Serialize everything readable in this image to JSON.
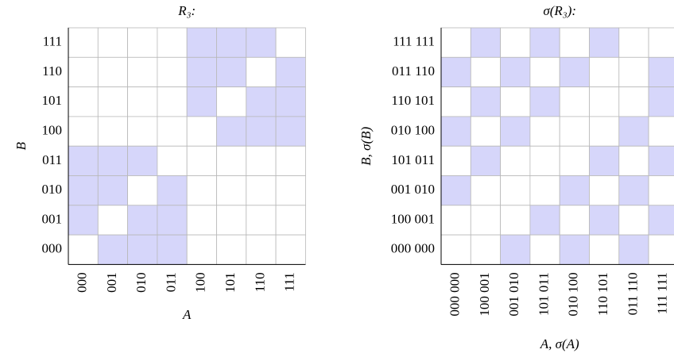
{
  "panels": [
    {
      "title": "R₃:",
      "x_label": "A",
      "y_label": "B",
      "rows": [
        "111",
        "110",
        "101",
        "100",
        "011",
        "010",
        "001",
        "000"
      ],
      "columns": [
        "000",
        "001",
        "010",
        "011",
        "100",
        "101",
        "110",
        "111"
      ],
      "cells": [
        [
          0,
          0,
          0,
          0,
          1,
          1,
          1,
          0
        ],
        [
          0,
          0,
          0,
          0,
          1,
          1,
          0,
          1
        ],
        [
          0,
          0,
          0,
          0,
          1,
          0,
          1,
          1
        ],
        [
          0,
          0,
          0,
          0,
          0,
          1,
          1,
          1
        ],
        [
          1,
          1,
          1,
          0,
          0,
          0,
          0,
          0
        ],
        [
          1,
          1,
          0,
          1,
          0,
          0,
          0,
          0
        ],
        [
          1,
          0,
          1,
          1,
          0,
          0,
          0,
          0
        ],
        [
          0,
          1,
          1,
          1,
          0,
          0,
          0,
          0
        ]
      ]
    },
    {
      "title": "σ(R₃):",
      "x_label": "A, σ(A)",
      "y_label": "B, σ(B)",
      "rows": [
        "111 111",
        "011 110",
        "110 101",
        "010 100",
        "101 011",
        "001 010",
        "100 001",
        "000 000"
      ],
      "columns": [
        "000 000",
        "100 001",
        "001 010",
        "101 011",
        "010 100",
        "110 101",
        "011 110",
        "111 111"
      ],
      "cells": [
        [
          0,
          1,
          0,
          1,
          0,
          1,
          0,
          0
        ],
        [
          1,
          0,
          1,
          0,
          1,
          0,
          0,
          1
        ],
        [
          0,
          1,
          0,
          1,
          0,
          0,
          0,
          1
        ],
        [
          1,
          0,
          1,
          0,
          0,
          0,
          1,
          0
        ],
        [
          0,
          1,
          0,
          0,
          0,
          1,
          0,
          1
        ],
        [
          1,
          0,
          0,
          0,
          1,
          0,
          1,
          0
        ],
        [
          0,
          0,
          0,
          1,
          0,
          1,
          0,
          1
        ],
        [
          0,
          0,
          1,
          0,
          1,
          0,
          1,
          0
        ]
      ]
    }
  ]
}
